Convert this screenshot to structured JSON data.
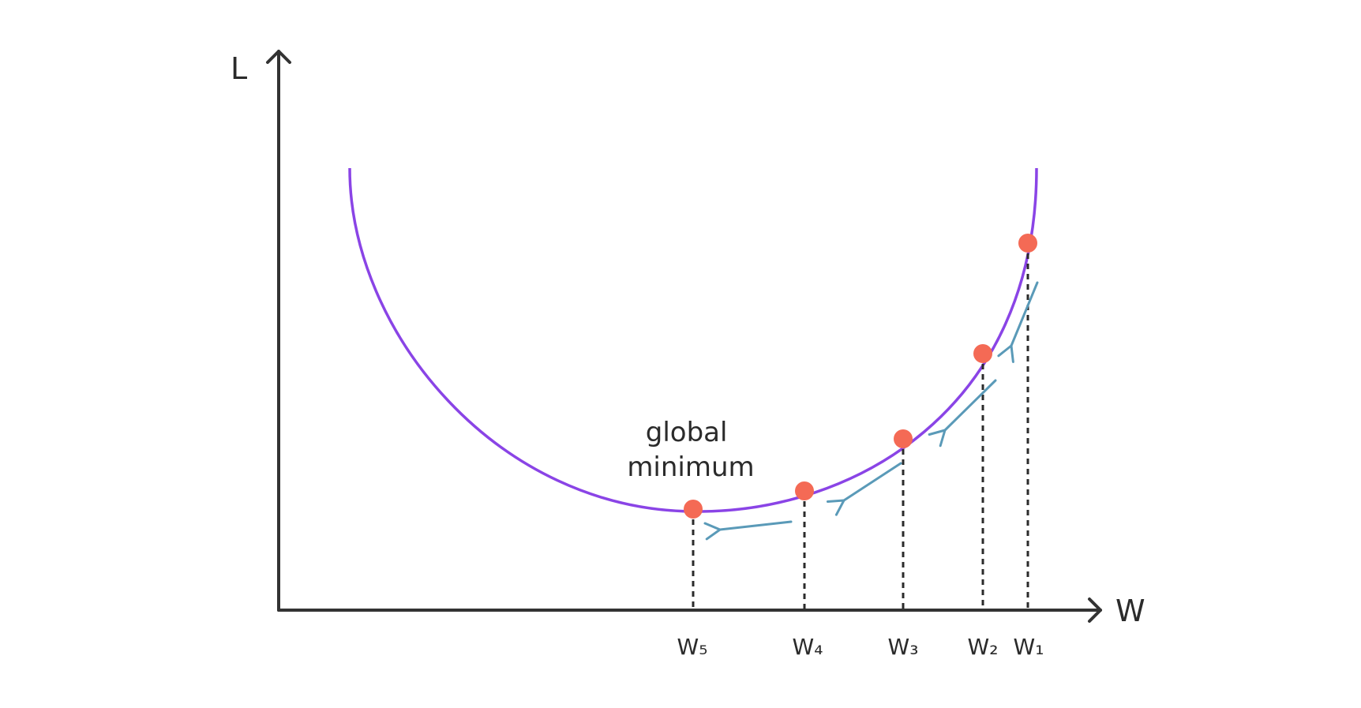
{
  "diagram": {
    "y_axis_label": "L",
    "x_axis_label": "W",
    "annotation": [
      "global",
      "minimum"
    ],
    "points": [
      {
        "label": "W₁"
      },
      {
        "label": "W₂"
      },
      {
        "label": "W₃"
      },
      {
        "label": "W₄"
      },
      {
        "label": "W₅"
      }
    ],
    "colors": {
      "axis": "#333333",
      "curve": "#8a44e6",
      "point": "#f46a55",
      "arrow": "#5a9ab8",
      "dashed_line": "#2b2b2b",
      "text": "#2b2b2b"
    }
  }
}
